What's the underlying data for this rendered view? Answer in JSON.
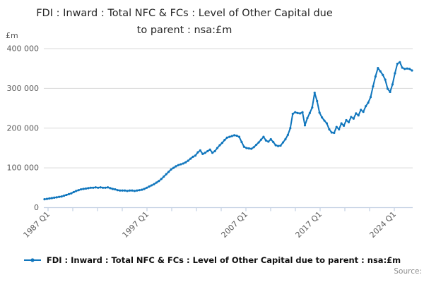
{
  "title": {
    "line1": "FDI : Inward : Total NFC & FCs : Level of Other Capital due",
    "line2": "to parent : nsa:£m",
    "full": "FDI : Inward : Total NFC & FCs : Level of Other Capital due to parent : nsa:£m"
  },
  "y_axis": {
    "unit_label": "£m",
    "ticks": [
      {
        "value": 0,
        "label": "0"
      },
      {
        "value": 100000,
        "label": "100 000"
      },
      {
        "value": 200000,
        "label": "200 000"
      },
      {
        "value": 300000,
        "label": "300 000"
      },
      {
        "value": 400000,
        "label": "400 000"
      }
    ]
  },
  "x_axis": {
    "minor_tick_count": 15,
    "labels": [
      {
        "label": "1987 Q1",
        "tick_index": 0
      },
      {
        "label": "1997 Q1",
        "tick_index": 4
      },
      {
        "label": "2007 Q1",
        "tick_index": 8
      },
      {
        "label": "2017 Q1",
        "tick_index": 11
      },
      {
        "label": "2024 Q1",
        "tick_index": 14
      }
    ]
  },
  "legend": {
    "label": "FDI : Inward : Total NFC & FCs : Level of Other Capital due to parent : nsa:£m"
  },
  "source_label": "Source:",
  "colors": {
    "line": "#1076bd",
    "grid": "#d9d9d9",
    "axis": "#c3d0e2",
    "tick-text": "#595959",
    "title-text": "#262626",
    "legend-text": "#111111",
    "source-text": "#8c8c8c"
  },
  "chart_data": {
    "type": "line",
    "title": "FDI : Inward : Total NFC & FCs : Level of Other Capital due to parent : nsa:£m",
    "xlabel": "",
    "ylabel": "£m",
    "ylim": [
      0,
      400000
    ],
    "grid": true,
    "legend_position": "bottom",
    "x_start": "1987 Q1",
    "x_end": "2024 Q4",
    "x_frequency": "quarterly",
    "x_tick_labels": [
      "1987 Q1",
      "1997 Q1",
      "2007 Q1",
      "2017 Q1",
      "2024 Q1"
    ],
    "series": [
      {
        "name": "FDI : Inward : Total NFC & FCs : Level of Other Capital due to parent : nsa:£m",
        "values": [
          21000,
          22000,
          23000,
          24000,
          25000,
          26000,
          27000,
          28000,
          30000,
          32000,
          34000,
          36000,
          39000,
          42000,
          44000,
          46000,
          47000,
          48000,
          49000,
          50000,
          50000,
          51000,
          50000,
          51000,
          50000,
          50000,
          51000,
          49000,
          47000,
          46000,
          44000,
          43000,
          43000,
          43000,
          42000,
          43000,
          43000,
          42000,
          43000,
          44000,
          45000,
          47000,
          50000,
          53000,
          56000,
          59000,
          63000,
          67000,
          72000,
          78000,
          84000,
          90000,
          96000,
          100000,
          104000,
          107000,
          109000,
          111000,
          114000,
          118000,
          123000,
          128000,
          131000,
          139000,
          144000,
          135000,
          138000,
          142000,
          146000,
          138000,
          142000,
          150000,
          157000,
          163000,
          170000,
          176000,
          178000,
          180000,
          182000,
          181000,
          178000,
          165000,
          153000,
          150000,
          149000,
          148000,
          152000,
          158000,
          164000,
          171000,
          178000,
          169000,
          166000,
          172000,
          165000,
          157000,
          155000,
          156000,
          164000,
          172000,
          183000,
          200000,
          236000,
          240000,
          238000,
          237000,
          240000,
          207000,
          225000,
          238000,
          252000,
          289000,
          268000,
          239000,
          227000,
          219000,
          212000,
          197000,
          189000,
          188000,
          203000,
          197000,
          212000,
          206000,
          220000,
          215000,
          228000,
          224000,
          237000,
          232000,
          246000,
          241000,
          255000,
          264000,
          278000,
          305000,
          330000,
          351000,
          343000,
          334000,
          322000,
          299000,
          291000,
          310000,
          338000,
          362000,
          366000,
          352000,
          349000,
          350000,
          349000,
          345000
        ]
      }
    ]
  }
}
